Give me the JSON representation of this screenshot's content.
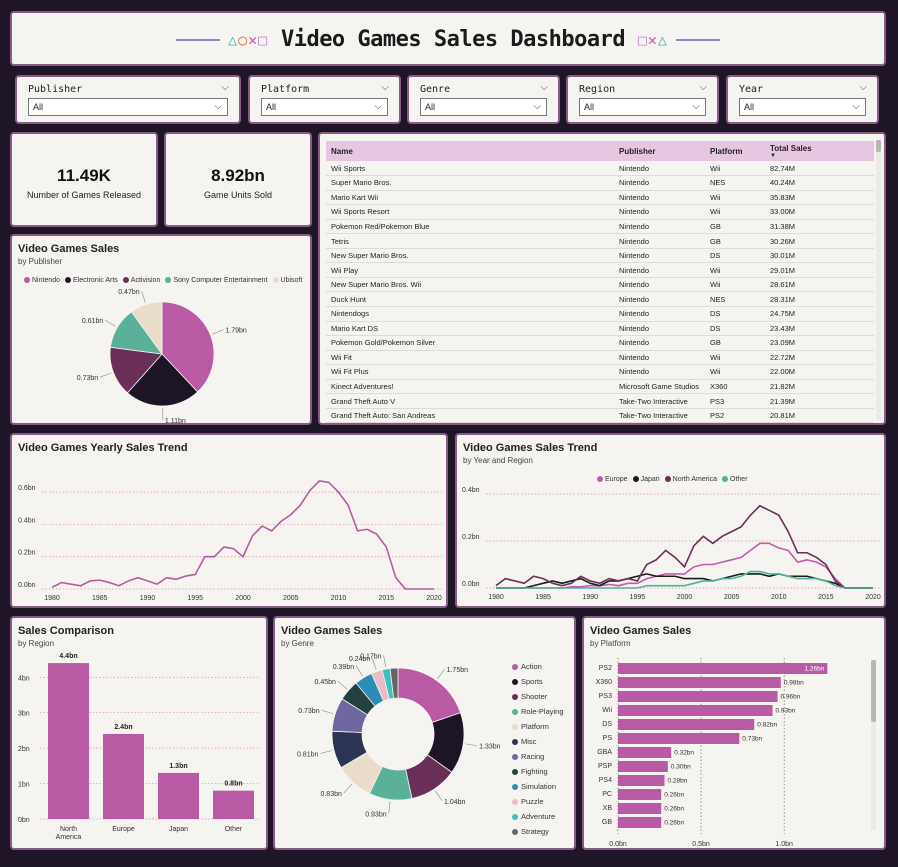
{
  "header": {
    "title": "Video Games Sales Dashboard"
  },
  "filters": [
    {
      "label": "Publisher",
      "value": "All"
    },
    {
      "label": "Platform",
      "value": "All"
    },
    {
      "label": "Genre",
      "value": "All"
    },
    {
      "label": "Region",
      "value": "All"
    },
    {
      "label": "Year",
      "value": "All"
    }
  ],
  "kpis": [
    {
      "value": "11.49K",
      "label": "Number of Games Released"
    },
    {
      "value": "8.92bn",
      "label": "Game Units Sold"
    }
  ],
  "table": {
    "columns": [
      "Name",
      "Publisher",
      "Platform",
      "Total Sales"
    ],
    "rows": [
      [
        "Wii Sports",
        "Nintendo",
        "Wii",
        "82.74M"
      ],
      [
        "Super Mario Bros.",
        "Nintendo",
        "NES",
        "40.24M"
      ],
      [
        "Mario Kart Wii",
        "Nintendo",
        "Wii",
        "35.83M"
      ],
      [
        "Wii Sports Resort",
        "Nintendo",
        "Wii",
        "33.00M"
      ],
      [
        "Pokemon Red/Pokemon Blue",
        "Nintendo",
        "GB",
        "31.38M"
      ],
      [
        "Tetris",
        "Nintendo",
        "GB",
        "30.26M"
      ],
      [
        "New Super Mario Bros.",
        "Nintendo",
        "DS",
        "30.01M"
      ],
      [
        "Wii Play",
        "Nintendo",
        "Wii",
        "29.01M"
      ],
      [
        "New Super Mario Bros. Wii",
        "Nintendo",
        "Wii",
        "28.61M"
      ],
      [
        "Duck Hunt",
        "Nintendo",
        "NES",
        "28.31M"
      ],
      [
        "Nintendogs",
        "Nintendo",
        "DS",
        "24.75M"
      ],
      [
        "Mario Kart DS",
        "Nintendo",
        "DS",
        "23.43M"
      ],
      [
        "Pokemon Gold/Pokemon Silver",
        "Nintendo",
        "GB",
        "23.09M"
      ],
      [
        "Wii Fit",
        "Nintendo",
        "Wii",
        "22.72M"
      ],
      [
        "Wii Fit Plus",
        "Nintendo",
        "Wii",
        "22.00M"
      ],
      [
        "Kinect Adventures!",
        "Microsoft Game Studios",
        "X360",
        "21.82M"
      ],
      [
        "Grand Theft Auto V",
        "Take-Two Interactive",
        "PS3",
        "21.39M"
      ],
      [
        "Grand Theft Auto: San Andreas",
        "Take-Two Interactive",
        "PS2",
        "20.81M"
      ]
    ]
  },
  "colors": {
    "pink": "#b95aa5",
    "dark": "#1d1426",
    "plum": "#6a2f58",
    "teal": "#5bb09a",
    "beige": "#e9dcc8",
    "europe": "#c45bb0",
    "japan": "#1a1a1a",
    "na": "#6a2f58",
    "other": "#4fb09c",
    "gridline": "#d98fa5"
  },
  "chart_data": [
    {
      "id": "publisher-pie",
      "type": "pie",
      "title": "Video Games Sales",
      "subtitle": "by Publisher",
      "series": [
        {
          "name": "Nintendo",
          "value": 1.79,
          "label": "1.79bn",
          "color": "#b95aa5"
        },
        {
          "name": "Electronic Arts",
          "value": 1.11,
          "label": "1.11bn",
          "color": "#1d1426"
        },
        {
          "name": "Activision",
          "value": 0.73,
          "label": "0.73bn",
          "color": "#6a2f58"
        },
        {
          "name": "Sony Computer Entertainment",
          "value": 0.61,
          "label": "0.61bn",
          "color": "#5bb09a"
        },
        {
          "name": "Ubisoft",
          "value": 0.47,
          "label": "0.47bn",
          "color": "#e9dcc8"
        }
      ]
    },
    {
      "id": "yearly-trend",
      "type": "line",
      "title": "Video Games Yearly Sales Trend",
      "x": [
        1980,
        1981,
        1982,
        1983,
        1984,
        1985,
        1986,
        1987,
        1988,
        1989,
        1990,
        1991,
        1992,
        1993,
        1994,
        1995,
        1996,
        1997,
        1998,
        1999,
        2000,
        2001,
        2002,
        2003,
        2004,
        2005,
        2006,
        2007,
        2008,
        2009,
        2010,
        2011,
        2012,
        2013,
        2014,
        2015,
        2016,
        2017,
        2018,
        2019,
        2020
      ],
      "values": [
        0.01,
        0.04,
        0.03,
        0.02,
        0.05,
        0.055,
        0.04,
        0.02,
        0.05,
        0.07,
        0.05,
        0.03,
        0.07,
        0.06,
        0.08,
        0.09,
        0.2,
        0.2,
        0.26,
        0.25,
        0.2,
        0.33,
        0.39,
        0.36,
        0.42,
        0.46,
        0.52,
        0.61,
        0.67,
        0.66,
        0.6,
        0.52,
        0.36,
        0.37,
        0.34,
        0.26,
        0.07,
        0.0,
        0.0,
        0.0,
        0.0
      ],
      "ylim": [
        0,
        0.7
      ],
      "yticks": [
        "0.0bn",
        "0.2bn",
        "0.4bn",
        "0.6bn"
      ],
      "xticks": [
        "1980",
        "1985",
        "1990",
        "1995",
        "2000",
        "2005",
        "2010",
        "2015",
        "2020"
      ],
      "color": "#b95aa5"
    },
    {
      "id": "region-trend",
      "type": "line",
      "title": "Video Games Sales Trend",
      "subtitle": "by Year and Region",
      "x": [
        1980,
        1981,
        1982,
        1983,
        1984,
        1985,
        1986,
        1987,
        1988,
        1989,
        1990,
        1991,
        1992,
        1993,
        1994,
        1995,
        1996,
        1997,
        1998,
        1999,
        2000,
        2001,
        2002,
        2003,
        2004,
        2005,
        2006,
        2007,
        2008,
        2009,
        2010,
        2011,
        2012,
        2013,
        2014,
        2015,
        2016,
        2017,
        2018,
        2019,
        2020
      ],
      "series": [
        {
          "name": "Europe",
          "color": "#c45bb0",
          "values": [
            0,
            0,
            0,
            0,
            0,
            0,
            0,
            0,
            0.005,
            0.005,
            0.01,
            0.01,
            0.015,
            0.01,
            0.02,
            0.02,
            0.04,
            0.05,
            0.06,
            0.06,
            0.06,
            0.09,
            0.1,
            0.1,
            0.11,
            0.12,
            0.13,
            0.16,
            0.19,
            0.19,
            0.17,
            0.16,
            0.11,
            0.12,
            0.11,
            0.09,
            0.04,
            0.0,
            0.0,
            0.0,
            0.0
          ]
        },
        {
          "name": "Japan",
          "color": "#1a1a1a",
          "values": [
            0,
            0,
            0,
            0,
            0.01,
            0.02,
            0.03,
            0.02,
            0.03,
            0.04,
            0.02,
            0.01,
            0.03,
            0.03,
            0.04,
            0.05,
            0.06,
            0.05,
            0.05,
            0.05,
            0.04,
            0.04,
            0.04,
            0.03,
            0.04,
            0.05,
            0.06,
            0.06,
            0.06,
            0.05,
            0.06,
            0.05,
            0.05,
            0.05,
            0.04,
            0.03,
            0.02,
            0.0,
            0.0,
            0.0,
            0.0
          ]
        },
        {
          "name": "North America",
          "color": "#6a2f58",
          "values": [
            0.01,
            0.04,
            0.03,
            0.02,
            0.05,
            0.04,
            0.02,
            0.01,
            0.02,
            0.05,
            0.03,
            0.02,
            0.04,
            0.03,
            0.04,
            0.03,
            0.1,
            0.12,
            0.16,
            0.13,
            0.09,
            0.18,
            0.22,
            0.19,
            0.22,
            0.24,
            0.26,
            0.31,
            0.35,
            0.33,
            0.31,
            0.24,
            0.15,
            0.15,
            0.13,
            0.1,
            0.03,
            0.0,
            0.0,
            0.0,
            0.0
          ]
        },
        {
          "name": "Other",
          "color": "#4fb09c",
          "values": [
            0,
            0,
            0,
            0,
            0,
            0,
            0,
            0,
            0,
            0,
            0,
            0,
            0,
            0,
            0,
            0,
            0.01,
            0.01,
            0.01,
            0.01,
            0.01,
            0.02,
            0.03,
            0.03,
            0.04,
            0.04,
            0.05,
            0.07,
            0.07,
            0.06,
            0.06,
            0.05,
            0.04,
            0.04,
            0.04,
            0.03,
            0.01,
            0.0,
            0.0,
            0.0,
            0.0
          ]
        }
      ],
      "ylim": [
        0,
        0.4
      ],
      "yticks": [
        "0.0bn",
        "0.2bn",
        "0.4bn"
      ],
      "xticks": [
        "1980",
        "1985",
        "1990",
        "1995",
        "2000",
        "2005",
        "2010",
        "2015",
        "2020"
      ]
    },
    {
      "id": "region-bars",
      "type": "bar",
      "title": "Sales Comparison",
      "subtitle": "by Region",
      "categories": [
        "North\nAmerica",
        "Europe",
        "Japan",
        "Other"
      ],
      "values": [
        4.4,
        2.4,
        1.3,
        0.8
      ],
      "labels": [
        "4.4bn",
        "2.4bn",
        "1.3bn",
        "0.8bn"
      ],
      "ylim": [
        0,
        4.6
      ],
      "yticks": [
        "0bn",
        "1bn",
        "2bn",
        "3bn",
        "4bn"
      ],
      "color": "#b95aa5"
    },
    {
      "id": "genre-donut",
      "type": "pie",
      "title": "Video Games Sales",
      "subtitle": "by Genre",
      "series": [
        {
          "name": "Action",
          "value": 1.75,
          "label": "1.75bn",
          "color": "#b95aa5"
        },
        {
          "name": "Sports",
          "value": 1.33,
          "label": "1.33bn",
          "color": "#1d1426"
        },
        {
          "name": "Shooter",
          "value": 1.04,
          "label": "1.04bn",
          "color": "#6a2f58"
        },
        {
          "name": "Role-Playing",
          "value": 0.93,
          "label": "0.93bn",
          "color": "#5bb09a"
        },
        {
          "name": "Platform",
          "value": 0.83,
          "label": "0.83bn",
          "color": "#e9dcc8"
        },
        {
          "name": "Misc",
          "value": 0.81,
          "label": "0.81bn",
          "color": "#2c3454"
        },
        {
          "name": "Racing",
          "value": 0.73,
          "label": "0.73bn",
          "color": "#6f68a0"
        },
        {
          "name": "Fighting",
          "value": 0.45,
          "label": "0.45bn",
          "color": "#23413e"
        },
        {
          "name": "Simulation",
          "value": 0.39,
          "label": "0.39bn",
          "color": "#2c8cb7"
        },
        {
          "name": "Puzzle",
          "value": 0.24,
          "label": "0.24bn",
          "color": "#e9bcc8"
        },
        {
          "name": "Adventure",
          "value": 0.17,
          "label": "0.17bn",
          "color": "#3cc0bc"
        },
        {
          "name": "Strategy",
          "value": 0.17,
          "label": "",
          "color": "#666666"
        }
      ]
    },
    {
      "id": "platform-bars",
      "type": "bar",
      "orientation": "horizontal",
      "title": "Video Games Sales",
      "subtitle": "by Platform",
      "categories": [
        "PS2",
        "X360",
        "PS3",
        "Wii",
        "DS",
        "PS",
        "GBA",
        "PSP",
        "PS4",
        "PC",
        "XB",
        "GB"
      ],
      "values": [
        1.26,
        0.98,
        0.96,
        0.93,
        0.82,
        0.73,
        0.32,
        0.3,
        0.28,
        0.26,
        0.26,
        0.26
      ],
      "labels": [
        "1.26bn",
        "0.98bn",
        "0.96bn",
        "0.93bn",
        "0.82bn",
        "0.73bn",
        "0.32bn",
        "0.30bn",
        "0.28bn",
        "0.26bn",
        "0.26bn",
        "0.26bn"
      ],
      "xlim": [
        0,
        1.3
      ],
      "xticks": [
        "0.0bn",
        "0.5bn",
        "1.0bn"
      ],
      "color": "#b95aa5"
    }
  ]
}
